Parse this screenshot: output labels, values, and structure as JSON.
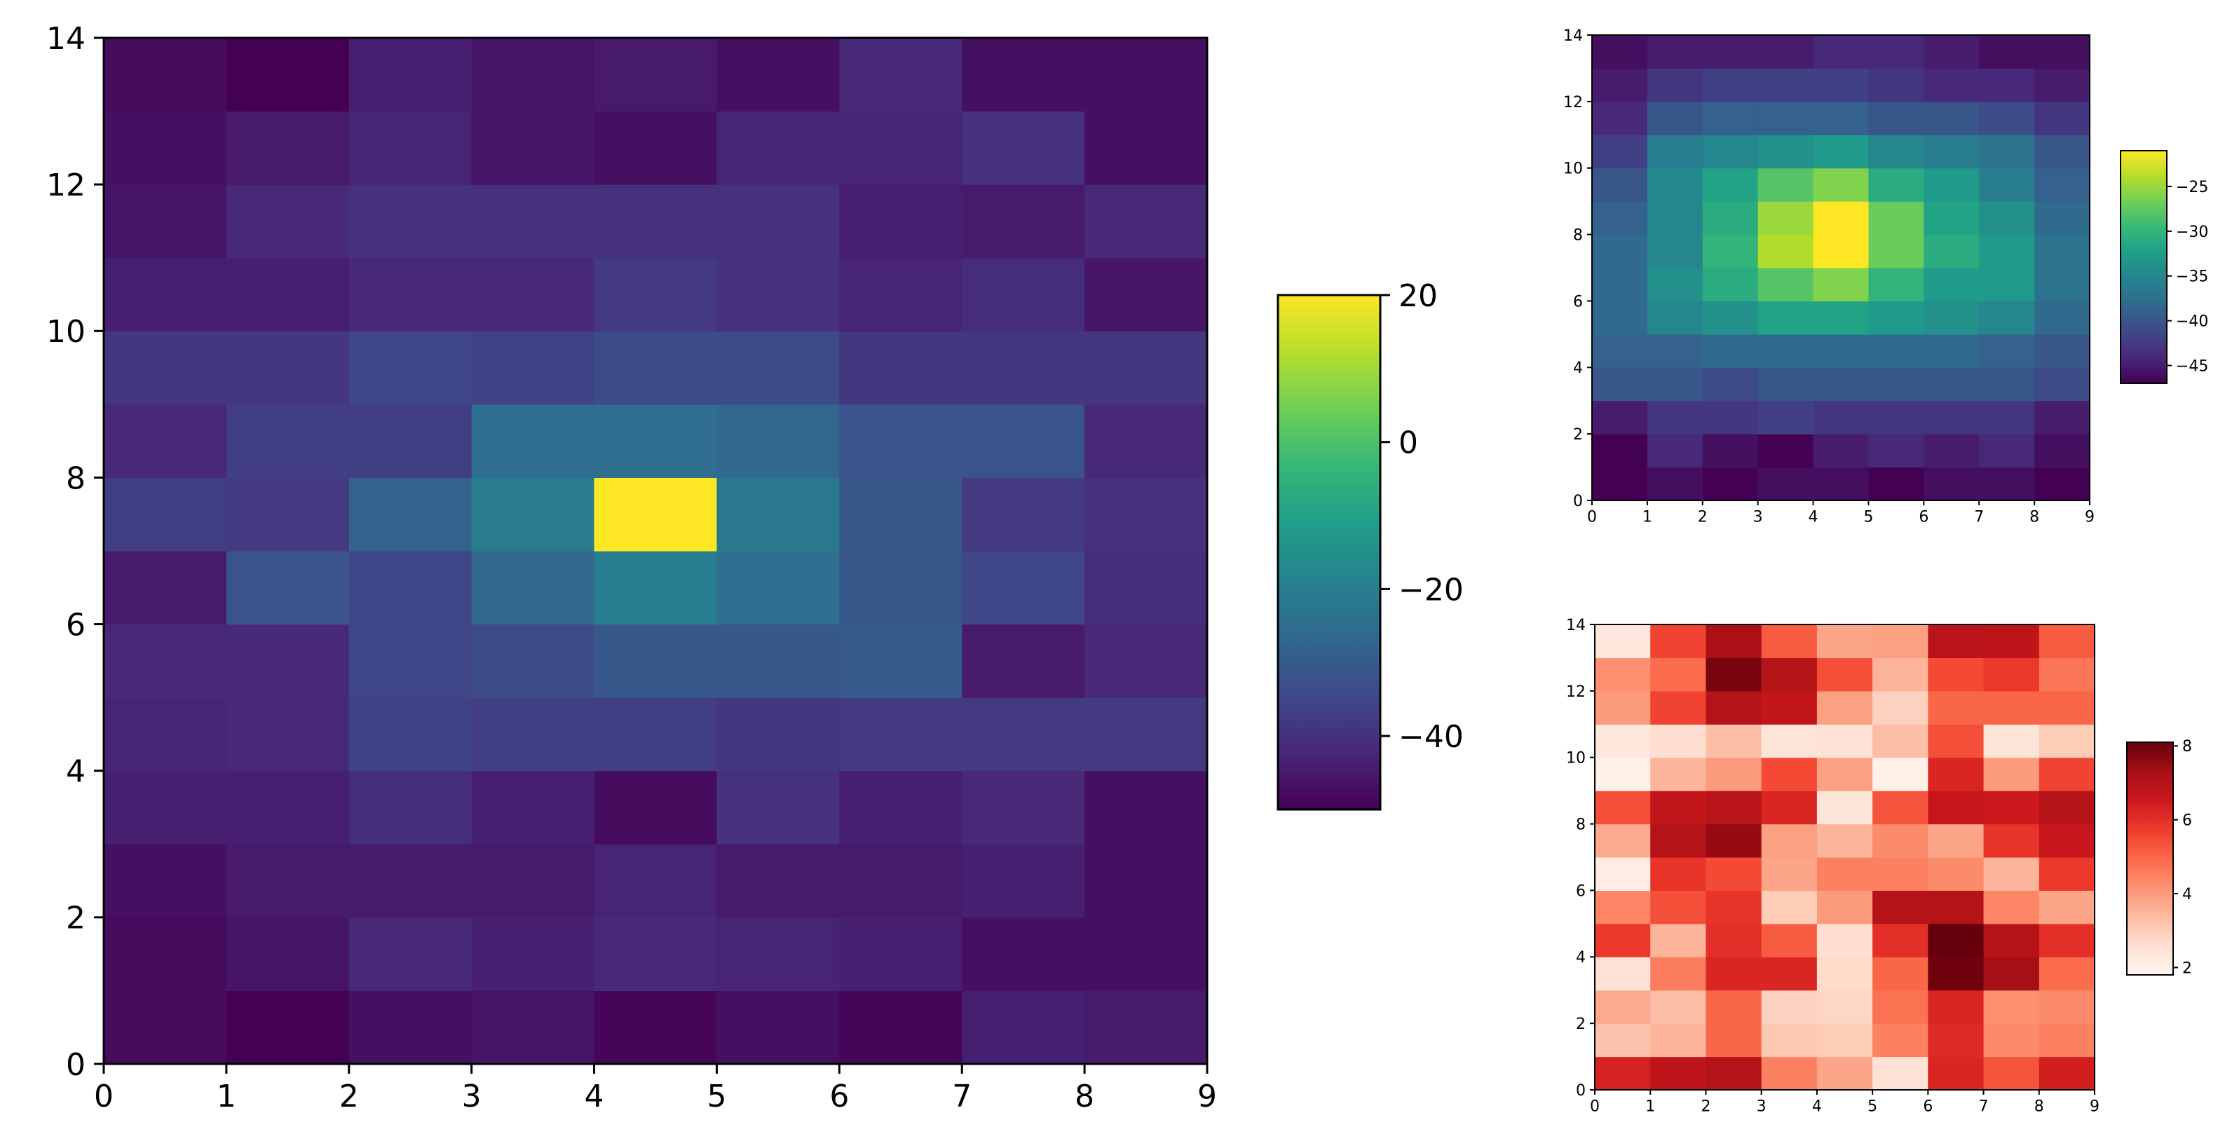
{
  "chart_data": [
    {
      "type": "heatmap",
      "colormap": "viridis",
      "title": "",
      "xlabel": "",
      "ylabel": "",
      "x_edges": [
        0,
        1,
        2,
        3,
        4,
        5,
        6,
        7,
        8,
        9
      ],
      "y_edges": [
        0,
        1,
        2,
        3,
        4,
        5,
        6,
        7,
        8,
        9,
        10,
        11,
        12,
        13,
        14
      ],
      "xlim": [
        0,
        9
      ],
      "ylim": [
        0,
        14
      ],
      "xticks": [
        "0",
        "1",
        "2",
        "3",
        "4",
        "5",
        "6",
        "7",
        "8",
        "9"
      ],
      "yticks": [
        "0",
        "2",
        "4",
        "6",
        "8",
        "10",
        "12",
        "14"
      ],
      "color_range": [
        -50,
        20
      ],
      "colorbar_ticks": [
        "20",
        "0",
        "−20",
        "−40"
      ],
      "colorbar_tick_values": [
        20,
        0,
        -20,
        -40
      ],
      "values": [
        [
          -48,
          -50,
          -47,
          -46,
          -49,
          -47,
          -49,
          -44,
          -45
        ],
        [
          -48,
          -46,
          -42,
          -44,
          -42,
          -43,
          -44,
          -47,
          -47
        ],
        [
          -47,
          -45,
          -45,
          -45,
          -43,
          -45,
          -45,
          -44,
          -47
        ],
        [
          -44,
          -44,
          -41,
          -44,
          -48,
          -40,
          -44,
          -42,
          -47
        ],
        [
          -43,
          -42,
          -36,
          -37,
          -37,
          -39,
          -38,
          -38,
          -38
        ],
        [
          -42,
          -42,
          -35,
          -34,
          -31,
          -31,
          -30,
          -45,
          -42
        ],
        [
          -45,
          -32,
          -35,
          -27,
          -20,
          -25,
          -31,
          -35,
          -41
        ],
        [
          -37,
          -38,
          -28,
          -21,
          20,
          -22,
          -31,
          -38,
          -40
        ],
        [
          -42,
          -37,
          -37,
          -25,
          -25,
          -27,
          -32,
          -32,
          -42
        ],
        [
          -39,
          -39,
          -35,
          -36,
          -34,
          -34,
          -39,
          -39,
          -39
        ],
        [
          -44,
          -44,
          -42,
          -42,
          -38,
          -40,
          -43,
          -41,
          -46
        ],
        [
          -46,
          -42,
          -40,
          -40,
          -40,
          -40,
          -44,
          -45,
          -42
        ],
        [
          -47,
          -45,
          -43,
          -46,
          -47,
          -43,
          -43,
          -40,
          -47
        ],
        [
          -48,
          -50,
          -44,
          -46,
          -45,
          -47,
          -42,
          -47,
          -47
        ]
      ]
    },
    {
      "type": "heatmap",
      "colormap": "viridis",
      "title": "",
      "xlabel": "",
      "ylabel": "",
      "xlim": [
        0,
        9
      ],
      "ylim": [
        0,
        14
      ],
      "xticks": [
        "0",
        "1",
        "2",
        "3",
        "4",
        "5",
        "6",
        "7",
        "8",
        "9"
      ],
      "yticks": [
        "0",
        "2",
        "4",
        "6",
        "8",
        "10",
        "12",
        "14"
      ],
      "color_range": [
        -47,
        -21
      ],
      "colorbar_ticks": [
        "−25",
        "−30",
        "−35",
        "−40",
        "−45"
      ],
      "colorbar_tick_values": [
        -25,
        -30,
        -35,
        -40,
        -45
      ],
      "values": [
        [
          -47,
          -46,
          -47,
          -46,
          -46,
          -47,
          -46,
          -46,
          -47
        ],
        [
          -47,
          -44,
          -46,
          -47,
          -45,
          -44,
          -45,
          -44,
          -46
        ],
        [
          -45,
          -43,
          -43,
          -42,
          -43,
          -43,
          -43,
          -43,
          -45
        ],
        [
          -40,
          -40,
          -41,
          -40,
          -40,
          -40,
          -40,
          -40,
          -41
        ],
        [
          -39,
          -39,
          -38,
          -38,
          -38,
          -38,
          -38,
          -39,
          -40
        ],
        [
          -38,
          -35,
          -34,
          -32,
          -32,
          -33,
          -34,
          -35,
          -38
        ],
        [
          -38,
          -34,
          -31,
          -28,
          -26,
          -30,
          -33,
          -33,
          -37
        ],
        [
          -38,
          -35,
          -30,
          -24,
          -21,
          -27,
          -31,
          -33,
          -37
        ],
        [
          -39,
          -35,
          -31,
          -25,
          -21,
          -27,
          -32,
          -34,
          -38
        ],
        [
          -40,
          -35,
          -32,
          -28,
          -26,
          -31,
          -33,
          -36,
          -39
        ],
        [
          -42,
          -36,
          -35,
          -34,
          -33,
          -35,
          -36,
          -37,
          -40
        ],
        [
          -44,
          -40,
          -39,
          -39,
          -39,
          -40,
          -40,
          -41,
          -43
        ],
        [
          -45,
          -43,
          -42,
          -42,
          -42,
          -43,
          -44,
          -44,
          -45
        ],
        [
          -46,
          -45,
          -45,
          -45,
          -44,
          -44,
          -45,
          -46,
          -46
        ]
      ]
    },
    {
      "type": "heatmap",
      "colormap": "Reds",
      "title": "",
      "xlabel": "",
      "ylabel": "",
      "xlim": [
        0,
        9
      ],
      "ylim": [
        0,
        14
      ],
      "xticks": [
        "0",
        "1",
        "2",
        "3",
        "4",
        "5",
        "6",
        "7",
        "8",
        "9"
      ],
      "yticks": [
        "0",
        "2",
        "4",
        "6",
        "8",
        "10",
        "12",
        "14"
      ],
      "color_range": [
        1.8,
        8.1
      ],
      "colorbar_ticks": [
        "8",
        "6",
        "4",
        "2"
      ],
      "colorbar_tick_values": [
        8,
        6,
        4,
        2
      ],
      "values": [
        [
          6.3,
          6.8,
          7.0,
          4.5,
          3.8,
          2.5,
          6.2,
          5.3,
          6.4
        ],
        [
          3.2,
          3.5,
          5.0,
          3.1,
          3.0,
          4.5,
          6.1,
          4.3,
          4.5
        ],
        [
          3.7,
          3.3,
          5.0,
          2.9,
          2.8,
          4.8,
          6.2,
          4.2,
          4.3
        ],
        [
          2.5,
          4.6,
          6.2,
          6.2,
          2.7,
          5.0,
          8.0,
          7.3,
          4.9
        ],
        [
          5.8,
          3.5,
          6.0,
          5.2,
          2.6,
          6.0,
          8.1,
          7.0,
          6.0
        ],
        [
          4.4,
          5.4,
          5.9,
          3.0,
          4.0,
          7.0,
          7.0,
          4.4,
          3.8
        ],
        [
          2.1,
          5.9,
          5.5,
          3.8,
          4.5,
          4.5,
          4.3,
          3.5,
          5.8
        ],
        [
          3.7,
          7.0,
          7.5,
          3.9,
          3.5,
          4.3,
          3.8,
          5.9,
          6.6
        ],
        [
          5.4,
          6.7,
          6.9,
          6.2,
          2.4,
          5.3,
          6.6,
          6.5,
          7.0
        ],
        [
          2.0,
          3.5,
          4.0,
          5.5,
          3.9,
          2.0,
          6.2,
          4.0,
          5.6
        ],
        [
          2.3,
          2.6,
          3.3,
          2.4,
          2.5,
          3.3,
          5.4,
          2.4,
          3.0
        ],
        [
          4.0,
          5.6,
          7.0,
          6.7,
          3.9,
          2.9,
          5.0,
          5.0,
          5.0
        ],
        [
          4.2,
          4.9,
          7.9,
          7.0,
          5.4,
          3.5,
          5.5,
          5.8,
          4.7
        ],
        [
          2.3,
          5.6,
          7.2,
          5.2,
          3.8,
          3.9,
          6.9,
          6.8,
          5.2
        ]
      ]
    }
  ]
}
